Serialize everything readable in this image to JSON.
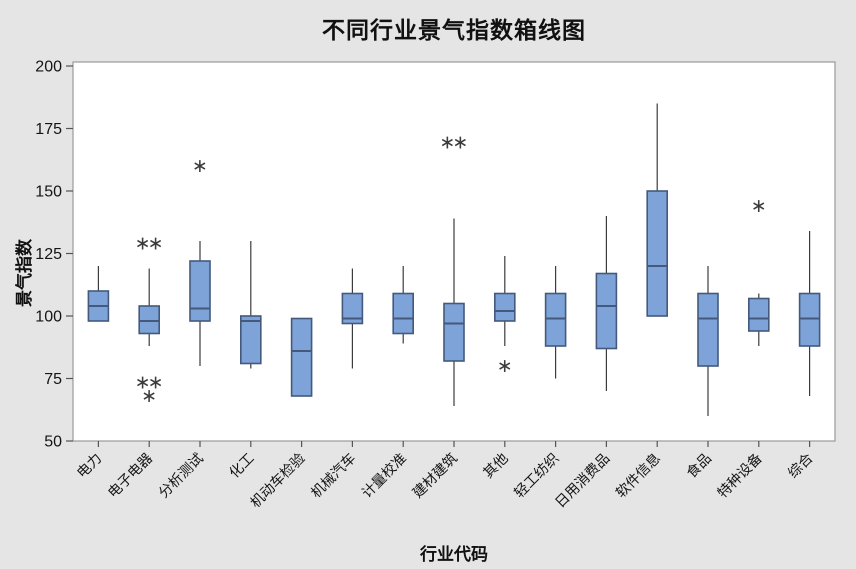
{
  "chart_data": {
    "type": "boxplot",
    "title": "不同行业景气指数箱线图",
    "xlabel": "行业代码",
    "ylabel": "景气指数",
    "ylim": [
      50,
      200
    ],
    "y_ticks": [
      50,
      75,
      100,
      125,
      150,
      175,
      200
    ],
    "grid": false,
    "legend": "none",
    "boxes": [
      {
        "category": "电力",
        "min": 98,
        "q1": 98,
        "median": 104,
        "q3": 110,
        "max": 120,
        "outliers": []
      },
      {
        "category": "电子电器",
        "min": 88,
        "q1": 93,
        "median": 98,
        "q3": 104,
        "max": 119,
        "outliers": [
          130,
          128,
          74,
          73,
          68
        ]
      },
      {
        "category": "分析测试",
        "min": 80,
        "q1": 98,
        "median": 103,
        "q3": 122,
        "max": 130,
        "outliers": [
          160
        ]
      },
      {
        "category": "化工",
        "min": 79,
        "q1": 81,
        "median": 98,
        "q3": 100,
        "max": 130,
        "outliers": []
      },
      {
        "category": "机动车检验",
        "min": 68,
        "q1": 68,
        "median": 86,
        "q3": 99,
        "max": 99,
        "outliers": []
      },
      {
        "category": "机械汽车",
        "min": 79,
        "q1": 97,
        "median": 99,
        "q3": 109,
        "max": 119,
        "outliers": []
      },
      {
        "category": "计量校准",
        "min": 89,
        "q1": 93,
        "median": 99,
        "q3": 109,
        "max": 120,
        "outliers": []
      },
      {
        "category": "建材建筑",
        "min": 64,
        "q1": 82,
        "median": 97,
        "q3": 105,
        "max": 139,
        "outliers": [
          170,
          169
        ]
      },
      {
        "category": "其他",
        "min": 88,
        "q1": 98,
        "median": 102,
        "q3": 109,
        "max": 124,
        "outliers": [
          80
        ]
      },
      {
        "category": "轻工纺织",
        "min": 75,
        "q1": 88,
        "median": 99,
        "q3": 109,
        "max": 120,
        "outliers": []
      },
      {
        "category": "日用消费品",
        "min": 70,
        "q1": 87,
        "median": 104,
        "q3": 117,
        "max": 140,
        "outliers": []
      },
      {
        "category": "软件信息",
        "min": 100,
        "q1": 100,
        "median": 120,
        "q3": 150,
        "max": 185,
        "outliers": []
      },
      {
        "category": "食品",
        "min": 60,
        "q1": 80,
        "median": 99,
        "q3": 109,
        "max": 120,
        "outliers": []
      },
      {
        "category": "特种设备",
        "min": 88,
        "q1": 94,
        "median": 99,
        "q3": 107,
        "max": 109,
        "outliers": [
          144
        ]
      },
      {
        "category": "综合",
        "min": 68,
        "q1": 88,
        "median": 99,
        "q3": 109,
        "max": 134,
        "outliers": []
      }
    ]
  },
  "style": {
    "background": "#e5e5e5",
    "plot_background": "#ffffff",
    "frame_color": "#9a9a9a",
    "box_fill": "#7ea3d8",
    "box_stroke": "#44597c",
    "whisker_color": "#3c3c3c",
    "outlier_color": "#3c3c3c",
    "text_color": "#141414",
    "outlier_marker": "∗"
  }
}
